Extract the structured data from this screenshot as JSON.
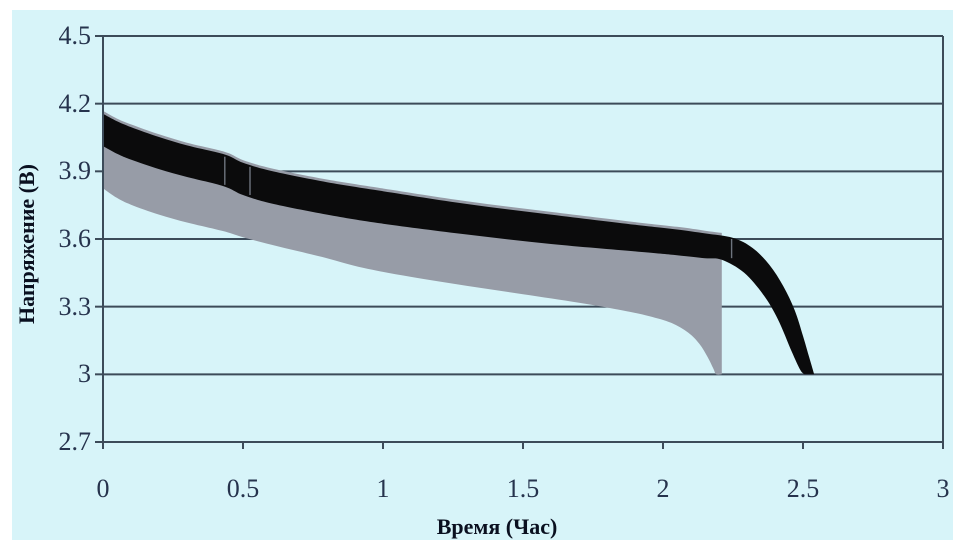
{
  "colors": {
    "canvas_background": "#ffffff",
    "chart_background": "#d7f4f9",
    "grid": "#3c4b59",
    "tick_label": "#26334d",
    "axis_title": "#0a1020",
    "gray_band": "#979ca7",
    "black_band": "#0b0b0c",
    "seam": "#6e747e"
  },
  "chart_data": {
    "type": "area",
    "title": "",
    "xlabel": "Время (Час)",
    "ylabel": "Напряжение (В)",
    "xlim": [
      0,
      3
    ],
    "ylim": [
      2.7,
      4.5
    ],
    "grid": "horizontal",
    "legend": "none",
    "xticks": [
      {
        "label": "0",
        "value": 0
      },
      {
        "label": "0.5",
        "value": 0.5
      },
      {
        "label": "1",
        "value": 1
      },
      {
        "label": "1.5",
        "value": 1.5
      },
      {
        "label": "2",
        "value": 2
      },
      {
        "label": "2.5",
        "value": 2.5
      },
      {
        "label": "3",
        "value": 3
      }
    ],
    "yticks": [
      {
        "label": "4.5",
        "value": 4.5
      },
      {
        "label": "4.2",
        "value": 4.2
      },
      {
        "label": "3.9",
        "value": 3.9
      },
      {
        "label": "3.6",
        "value": 3.6
      },
      {
        "label": "3.3",
        "value": 3.3
      },
      {
        "label": "3",
        "value": 3.0
      },
      {
        "label": "2.7",
        "value": 2.7
      }
    ],
    "series": [
      {
        "name": "gray-band",
        "type": "band",
        "color_key": "gray_band",
        "upper": [
          [
            0,
            4.168
          ],
          [
            0.05,
            4.134
          ],
          [
            0.1,
            4.108
          ],
          [
            0.2,
            4.064
          ],
          [
            0.3,
            4.027
          ],
          [
            0.4,
            3.998
          ],
          [
            0.45,
            3.98
          ],
          [
            0.5,
            3.95
          ],
          [
            0.6,
            3.914
          ],
          [
            0.8,
            3.864
          ],
          [
            1.0,
            3.824
          ],
          [
            1.3,
            3.767
          ],
          [
            1.6,
            3.72
          ],
          [
            1.9,
            3.675
          ],
          [
            2.05,
            3.654
          ],
          [
            2.15,
            3.637
          ],
          [
            2.21,
            3.627
          ]
        ],
        "lower": [
          [
            0,
            3.825
          ],
          [
            0.05,
            3.782
          ],
          [
            0.1,
            3.752
          ],
          [
            0.2,
            3.708
          ],
          [
            0.3,
            3.673
          ],
          [
            0.4,
            3.644
          ],
          [
            0.45,
            3.628
          ],
          [
            0.5,
            3.608
          ],
          [
            0.6,
            3.575
          ],
          [
            0.7,
            3.545
          ],
          [
            0.8,
            3.515
          ],
          [
            0.93,
            3.472
          ],
          [
            1.1,
            3.432
          ],
          [
            1.3,
            3.392
          ],
          [
            1.5,
            3.355
          ],
          [
            1.7,
            3.317
          ],
          [
            1.857,
            3.283
          ],
          [
            1.95,
            3.258
          ],
          [
            2.03,
            3.228
          ],
          [
            2.09,
            3.185
          ],
          [
            2.13,
            3.135
          ],
          [
            2.16,
            3.075
          ],
          [
            2.18,
            3.025
          ],
          [
            2.19,
            3.0
          ],
          [
            2.21,
            3.0
          ]
        ]
      },
      {
        "name": "black-band",
        "type": "band",
        "color_key": "black_band",
        "upper": [
          [
            0,
            4.155
          ],
          [
            0.05,
            4.122
          ],
          [
            0.1,
            4.096
          ],
          [
            0.2,
            4.052
          ],
          [
            0.3,
            4.015
          ],
          [
            0.4,
            3.986
          ],
          [
            0.45,
            3.968
          ],
          [
            0.5,
            3.938
          ],
          [
            0.6,
            3.902
          ],
          [
            0.8,
            3.852
          ],
          [
            1.0,
            3.812
          ],
          [
            1.3,
            3.755
          ],
          [
            1.6,
            3.708
          ],
          [
            1.9,
            3.663
          ],
          [
            2.05,
            3.642
          ],
          [
            2.15,
            3.625
          ],
          [
            2.25,
            3.605
          ],
          [
            2.32,
            3.56
          ],
          [
            2.38,
            3.485
          ],
          [
            2.43,
            3.39
          ],
          [
            2.47,
            3.285
          ],
          [
            2.5,
            3.17
          ],
          [
            2.52,
            3.085
          ],
          [
            2.54,
            3.0
          ]
        ],
        "lower": [
          [
            0,
            4.012
          ],
          [
            0.05,
            3.978
          ],
          [
            0.1,
            3.952
          ],
          [
            0.2,
            3.91
          ],
          [
            0.3,
            3.875
          ],
          [
            0.4,
            3.845
          ],
          [
            0.45,
            3.825
          ],
          [
            0.5,
            3.795
          ],
          [
            0.6,
            3.758
          ],
          [
            0.8,
            3.708
          ],
          [
            1.0,
            3.668
          ],
          [
            1.3,
            3.62
          ],
          [
            1.6,
            3.578
          ],
          [
            1.9,
            3.545
          ],
          [
            2.05,
            3.528
          ],
          [
            2.15,
            3.515
          ],
          [
            2.21,
            3.508
          ],
          [
            2.29,
            3.45
          ],
          [
            2.36,
            3.35
          ],
          [
            2.41,
            3.245
          ],
          [
            2.46,
            3.1
          ],
          [
            2.49,
            3.02
          ],
          [
            2.505,
            3.0
          ]
        ]
      }
    ],
    "seams": [
      {
        "t": 0.435,
        "v_from": 3.965,
        "v_to": 3.84
      },
      {
        "t": 0.525,
        "v_from": 3.92,
        "v_to": 3.795
      },
      {
        "t": 2.245,
        "v_from": 3.6,
        "v_to": 3.515
      }
    ]
  }
}
